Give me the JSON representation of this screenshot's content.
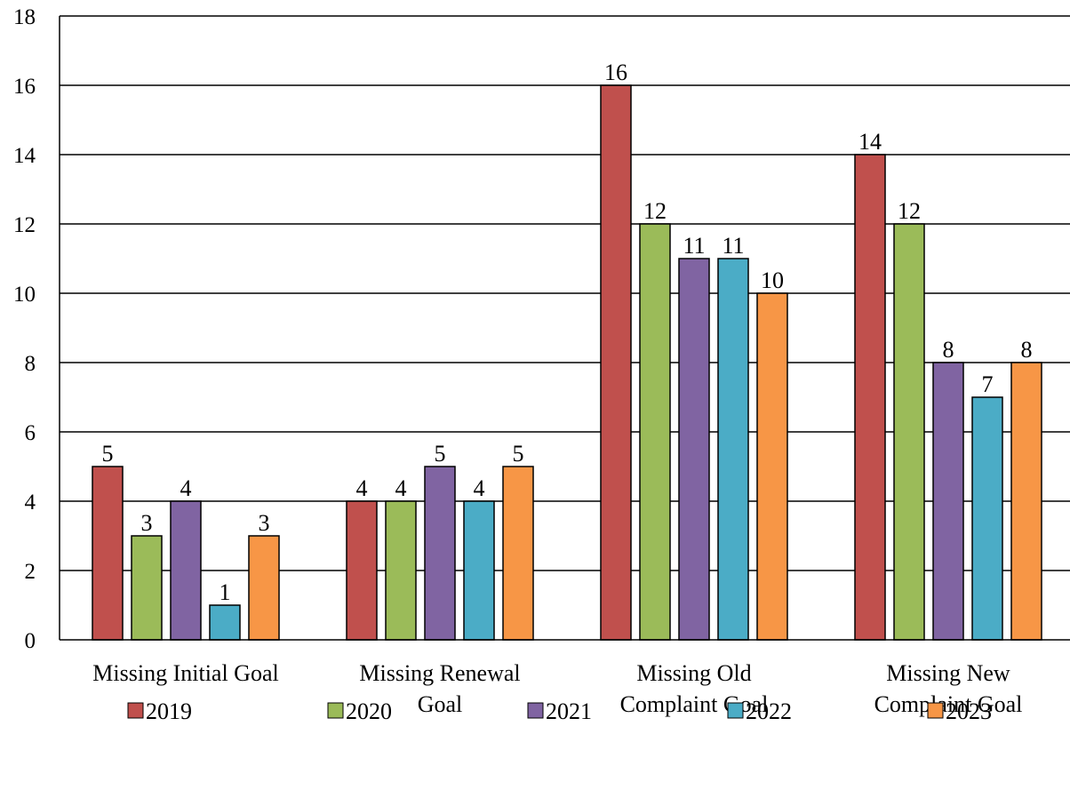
{
  "chart_data": {
    "type": "bar",
    "categories": [
      [
        "Missing Initial Goal"
      ],
      [
        "Missing Renewal",
        "Goal"
      ],
      [
        "Missing Old",
        "Complaint Goal"
      ],
      [
        "Missing New",
        "Complaint Goal"
      ]
    ],
    "series": [
      {
        "name": "2019",
        "color": "#c0504d",
        "values": [
          5,
          4,
          16,
          14
        ]
      },
      {
        "name": "2020",
        "color": "#9bbb59",
        "values": [
          3,
          4,
          12,
          12
        ]
      },
      {
        "name": "2021",
        "color": "#8064a2",
        "values": [
          4,
          5,
          11,
          8
        ]
      },
      {
        "name": "2022",
        "color": "#4bacc6",
        "values": [
          1,
          4,
          11,
          7
        ]
      },
      {
        "name": "2023",
        "color": "#f79646",
        "values": [
          3,
          5,
          10,
          8
        ]
      }
    ],
    "y_ticks": [
      "0",
      "2",
      "4",
      "6",
      "8",
      "10",
      "12",
      "14",
      "16",
      "18"
    ],
    "ylim": [
      0,
      18
    ],
    "title": "",
    "xlabel": "",
    "ylabel": "",
    "grid": "horizontal",
    "legend_position": "bottom",
    "data_labels": true
  }
}
